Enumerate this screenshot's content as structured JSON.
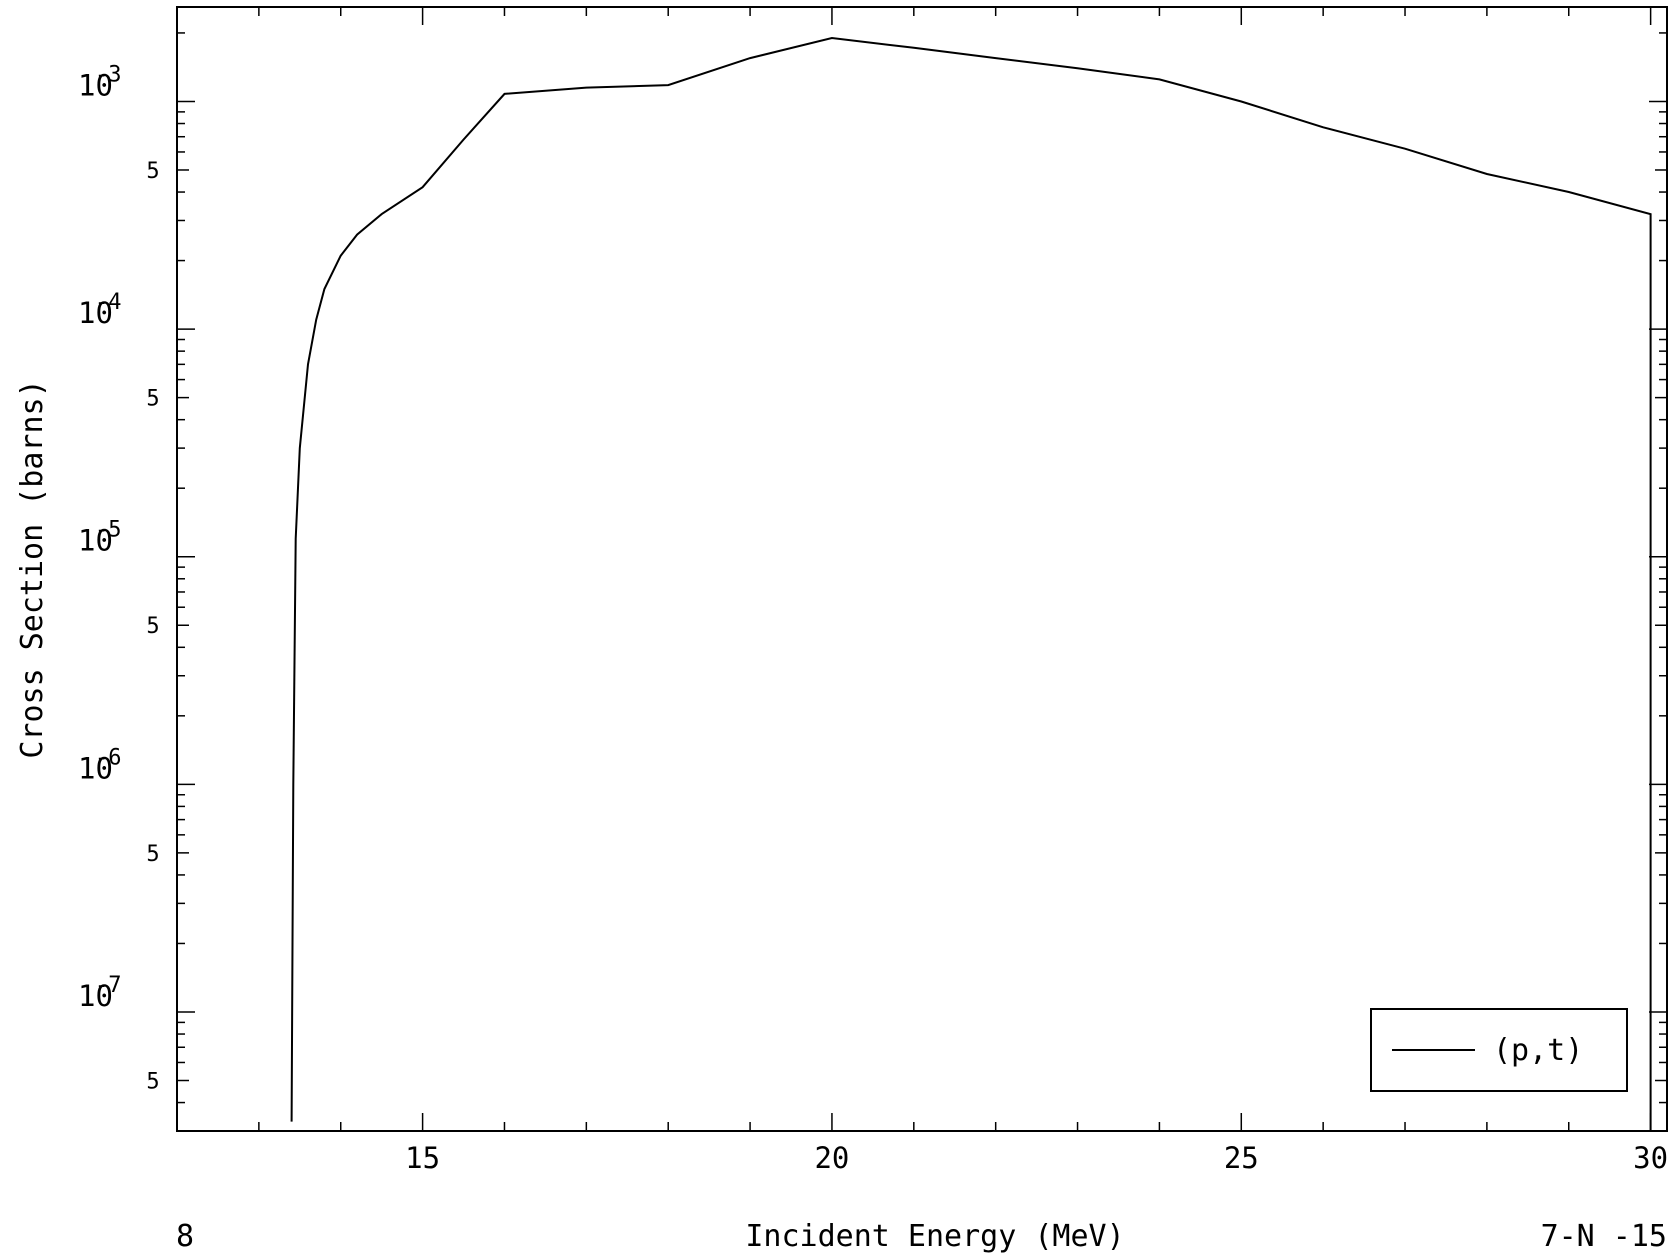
{
  "chart_data": {
    "type": "line",
    "title": "",
    "xlabel": "Incident Energy (MeV)",
    "ylabel": "Cross Section (barns)",
    "xlim": [
      12.0,
      30.2
    ],
    "ylim": [
      3e-08,
      0.0026
    ],
    "yscale": "log",
    "grid": false,
    "legend": {
      "position": "bottom-right"
    },
    "x_ticks": [
      "15",
      "20",
      "25",
      "30"
    ],
    "y_ticks": [
      {
        "base": "10",
        "exp": "-3"
      },
      {
        "base": "10",
        "exp": "-4"
      },
      {
        "base": "10",
        "exp": "-5"
      },
      {
        "base": "10",
        "exp": "-6"
      },
      {
        "base": "10",
        "exp": "-7"
      }
    ],
    "y_minor_label": "5",
    "footer": {
      "left": "8",
      "right": "7-N -15"
    },
    "series": [
      {
        "name": "(p,t)",
        "x": [
          13.4,
          13.42,
          13.45,
          13.5,
          13.6,
          13.7,
          13.8,
          14.0,
          14.2,
          14.5,
          15.0,
          15.5,
          16.0,
          17.0,
          18.0,
          19.0,
          20.0,
          21.0,
          22.0,
          23.0,
          24.0,
          25.0,
          26.0,
          27.0,
          28.0,
          29.0,
          30.0,
          30.0
        ],
        "y": [
          3.3e-08,
          1e-06,
          1.2e-05,
          3e-05,
          7e-05,
          0.00011,
          0.00015,
          0.00021,
          0.00026,
          0.00032,
          0.00042,
          0.00068,
          0.00108,
          0.00115,
          0.00118,
          0.00155,
          0.0019,
          0.00172,
          0.00155,
          0.0014,
          0.00125,
          0.001,
          0.00077,
          0.00062,
          0.00048,
          0.0004,
          0.00032,
          3e-08
        ]
      }
    ]
  }
}
